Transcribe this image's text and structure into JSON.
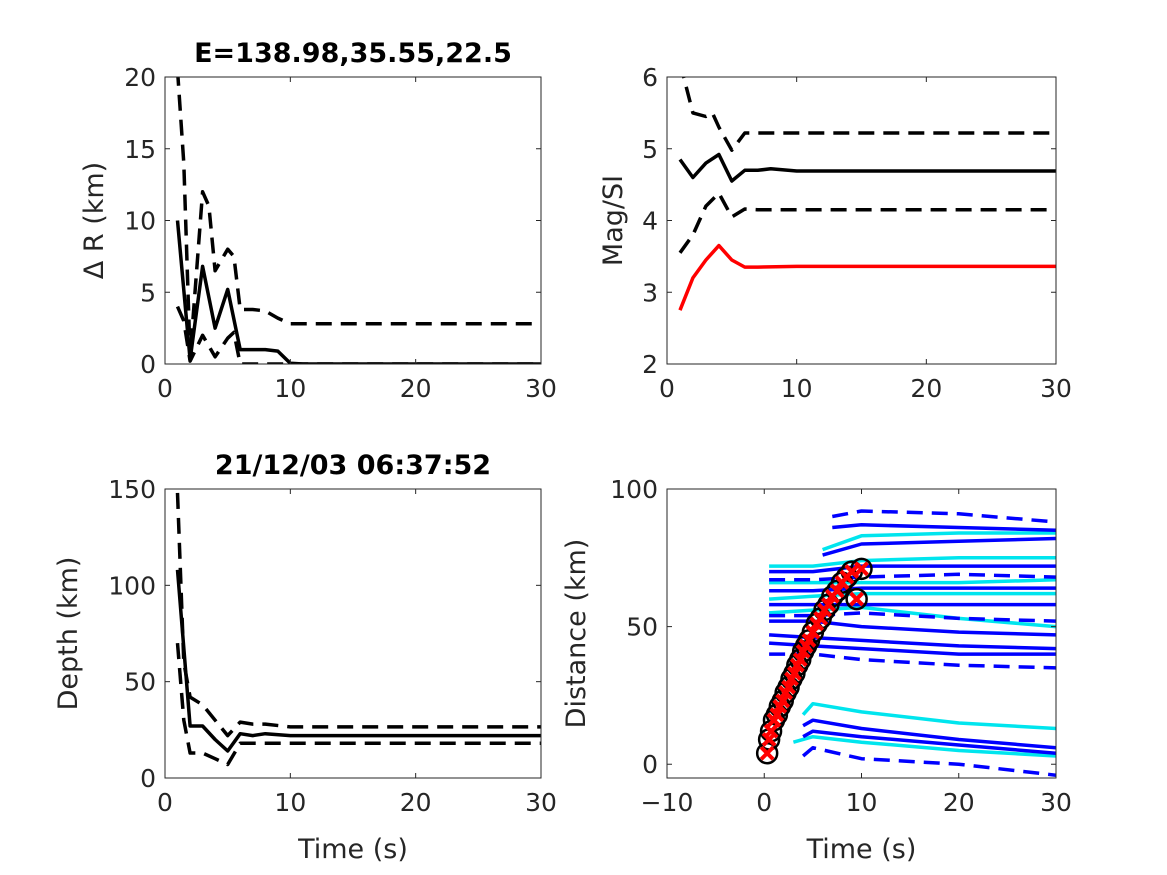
{
  "figure": {
    "background": "#ffffff"
  },
  "chart_data": [
    {
      "type": "line",
      "title": "E=138.98,35.55,22.5",
      "xlabel": "",
      "ylabel": "Δ R (km)",
      "xlim": [
        0,
        30
      ],
      "ylim": [
        0,
        20
      ],
      "xticks": [
        0,
        10,
        20,
        30
      ],
      "yticks": [
        0,
        5,
        10,
        15,
        20
      ],
      "grid": false,
      "series": [
        {
          "style": "solid",
          "color": "#000000",
          "x": [
            1,
            2,
            3,
            4,
            5,
            6,
            7,
            8,
            9,
            10,
            11,
            30
          ],
          "y": [
            10,
            0.3,
            6.8,
            2.5,
            5.2,
            1.0,
            1.0,
            1.0,
            0.9,
            0.05,
            0,
            0
          ]
        },
        {
          "style": "dashed",
          "color": "#000000",
          "x": [
            1,
            1.5,
            2,
            3,
            3.5,
            4,
            5,
            5.5,
            6,
            7,
            8,
            9,
            10,
            11,
            30
          ],
          "y": [
            20.5,
            14,
            0.5,
            12,
            11,
            6.5,
            8,
            7.5,
            3.8,
            3.8,
            3.7,
            3.2,
            2.8,
            2.8,
            2.8
          ]
        },
        {
          "style": "dashed",
          "color": "#000000",
          "x": [
            1,
            1.5,
            2,
            3,
            4,
            5,
            5.5,
            6,
            30
          ],
          "y": [
            4,
            3,
            0.2,
            2,
            0.5,
            1.8,
            2.2,
            0,
            0
          ]
        }
      ]
    },
    {
      "type": "line",
      "title": "",
      "xlabel": "",
      "ylabel": "Mag/SI",
      "xlim": [
        0,
        30
      ],
      "ylim": [
        2,
        6
      ],
      "xticks": [
        0,
        10,
        20,
        30
      ],
      "yticks": [
        2,
        3,
        4,
        5,
        6
      ],
      "grid": false,
      "series": [
        {
          "style": "solid",
          "color": "#000000",
          "x": [
            1,
            2,
            3,
            4,
            5,
            6,
            7,
            8,
            10,
            30
          ],
          "y": [
            4.85,
            4.6,
            4.8,
            4.92,
            4.55,
            4.7,
            4.7,
            4.72,
            4.69,
            4.69
          ]
        },
        {
          "style": "dashed",
          "color": "#000000",
          "x": [
            1,
            2,
            3,
            3.5,
            4,
            5,
            6,
            7,
            10,
            30
          ],
          "y": [
            6.2,
            5.5,
            5.45,
            5.5,
            5.3,
            4.98,
            5.22,
            5.22,
            5.22,
            5.22
          ]
        },
        {
          "style": "dashed",
          "color": "#000000",
          "x": [
            1,
            2,
            3,
            4,
            5,
            6,
            7,
            10,
            30
          ],
          "y": [
            3.55,
            3.8,
            4.2,
            4.38,
            4.05,
            4.16,
            4.15,
            4.15,
            4.15
          ]
        },
        {
          "style": "solid",
          "color": "#ff0000",
          "x": [
            1,
            2,
            3,
            4,
            5,
            6,
            7,
            10,
            30
          ],
          "y": [
            2.75,
            3.2,
            3.45,
            3.65,
            3.45,
            3.35,
            3.35,
            3.36,
            3.36
          ]
        }
      ]
    },
    {
      "type": "line",
      "title": "21/12/03 06:37:52",
      "xlabel": "Time (s)",
      "ylabel": "Depth (km)",
      "xlim": [
        0,
        30
      ],
      "ylim": [
        0,
        150
      ],
      "xticks": [
        0,
        10,
        20,
        30
      ],
      "yticks": [
        0,
        50,
        100,
        150
      ],
      "grid": false,
      "series": [
        {
          "style": "solid",
          "color": "#000000",
          "x": [
            1,
            2,
            3,
            4,
            5,
            6,
            7,
            8,
            10,
            30
          ],
          "y": [
            108,
            27,
            27,
            20,
            14,
            23,
            22,
            23,
            22,
            22
          ]
        },
        {
          "style": "dashed",
          "color": "#000000",
          "x": [
            1,
            1.5,
            2,
            3,
            4,
            5,
            6,
            7,
            8,
            10,
            30
          ],
          "y": [
            148,
            60,
            42,
            38,
            30,
            22,
            29,
            28,
            28,
            26.5,
            26.5
          ]
        },
        {
          "style": "dashed",
          "color": "#000000",
          "x": [
            1,
            1.5,
            2,
            3,
            4,
            5,
            6,
            7,
            8,
            10,
            30
          ],
          "y": [
            70,
            30,
            13,
            13,
            10,
            7,
            18,
            18,
            18,
            18,
            18
          ]
        }
      ]
    },
    {
      "type": "scatter",
      "title": "",
      "xlabel": "Time (s)",
      "ylabel": "Distance (km)",
      "xlim": [
        -10,
        30
      ],
      "ylim": [
        -5,
        100
      ],
      "xticks": [
        -10,
        0,
        10,
        20,
        30
      ],
      "yticks": [
        0,
        50,
        100
      ],
      "grid": false,
      "series": [
        {
          "style": "solid",
          "color": "#00e5ee",
          "x": [
            0.5,
            5,
            10,
            20,
            30
          ],
          "y": [
            72,
            72,
            74,
            75,
            75
          ]
        },
        {
          "style": "solid",
          "color": "#00e5ee",
          "x": [
            0.5,
            5,
            10,
            20,
            30
          ],
          "y": [
            66,
            66,
            66,
            66,
            67
          ]
        },
        {
          "style": "solid",
          "color": "#00e5ee",
          "x": [
            0.5,
            5,
            10,
            20,
            30
          ],
          "y": [
            60,
            61,
            62,
            62,
            62
          ]
        },
        {
          "style": "solid",
          "color": "#00e5ee",
          "x": [
            0.5,
            5,
            10,
            20,
            30
          ],
          "y": [
            55,
            56,
            57,
            53,
            50
          ]
        },
        {
          "style": "solid",
          "color": "#00e5ee",
          "x": [
            6,
            10,
            20,
            30
          ],
          "y": [
            78,
            83,
            84,
            84
          ]
        },
        {
          "style": "solid",
          "color": "#00e5ee",
          "x": [
            4,
            5,
            10,
            20,
            30
          ],
          "y": [
            18,
            22,
            19,
            15,
            13
          ]
        },
        {
          "style": "solid",
          "color": "#00e5ee",
          "x": [
            3,
            5,
            10,
            20,
            30
          ],
          "y": [
            8,
            10,
            8,
            5,
            3
          ]
        },
        {
          "style": "solid",
          "color": "#0000ff",
          "x": [
            0.5,
            5,
            10,
            20,
            30
          ],
          "y": [
            70,
            70,
            72,
            72,
            72
          ]
        },
        {
          "style": "solid",
          "color": "#0000ff",
          "x": [
            0.5,
            5,
            10,
            20,
            30
          ],
          "y": [
            63,
            63,
            64,
            64,
            64
          ]
        },
        {
          "style": "solid",
          "color": "#0000ff",
          "x": [
            0.5,
            5,
            10,
            20,
            30
          ],
          "y": [
            58,
            58,
            58,
            58,
            58
          ]
        },
        {
          "style": "solid",
          "color": "#0000ff",
          "x": [
            0.5,
            5,
            10,
            20,
            30
          ],
          "y": [
            52,
            52,
            50,
            48,
            47
          ]
        },
        {
          "style": "solid",
          "color": "#0000ff",
          "x": [
            0.5,
            5,
            10,
            20,
            30
          ],
          "y": [
            47,
            46,
            45,
            43,
            42
          ]
        },
        {
          "style": "solid",
          "color": "#0000ff",
          "x": [
            0.5,
            5,
            10,
            20,
            30
          ],
          "y": [
            44,
            43,
            42,
            40,
            40
          ]
        },
        {
          "style": "solid",
          "color": "#0000ff",
          "x": [
            6,
            10,
            20,
            30
          ],
          "y": [
            76,
            80,
            81,
            82
          ]
        },
        {
          "style": "solid",
          "color": "#0000ff",
          "x": [
            7,
            10,
            20,
            30
          ],
          "y": [
            86,
            87,
            86,
            85
          ]
        },
        {
          "style": "solid",
          "color": "#0000ff",
          "x": [
            4,
            5,
            10,
            20,
            30
          ],
          "y": [
            14,
            16,
            13,
            9,
            6
          ]
        },
        {
          "style": "solid",
          "color": "#0000ff",
          "x": [
            4,
            5,
            10,
            20,
            30
          ],
          "y": [
            10,
            12,
            10,
            7,
            4
          ]
        },
        {
          "style": "dashed",
          "color": "#0000ff",
          "x": [
            7,
            10,
            20,
            30
          ],
          "y": [
            90,
            92,
            91,
            88
          ]
        },
        {
          "style": "dashed",
          "color": "#0000ff",
          "x": [
            0.5,
            5,
            10,
            20,
            30
          ],
          "y": [
            67,
            67,
            68,
            69,
            68
          ]
        },
        {
          "style": "dashed",
          "color": "#0000ff",
          "x": [
            0.5,
            5,
            10,
            20,
            30
          ],
          "y": [
            54,
            54,
            55,
            53,
            52
          ]
        },
        {
          "style": "dashed",
          "color": "#0000ff",
          "x": [
            0.5,
            5,
            10,
            20,
            30
          ],
          "y": [
            40,
            40,
            38,
            36,
            35
          ]
        },
        {
          "style": "dashed",
          "color": "#0000ff",
          "x": [
            4,
            5,
            10,
            20,
            30
          ],
          "y": [
            3,
            6,
            2,
            0,
            -4
          ]
        }
      ],
      "markers": {
        "circle_color": "#000000",
        "cross_color": "#ff0000",
        "x": [
          0.3,
          0.5,
          0.7,
          1.0,
          1.3,
          1.6,
          1.9,
          2.2,
          2.5,
          2.8,
          3.1,
          3.4,
          3.7,
          4.0,
          4.3,
          4.6,
          5.0,
          5.4,
          5.8,
          6.2,
          6.6,
          7.0,
          7.5,
          8.0,
          8.5,
          9.0,
          9.5,
          10.0
        ],
        "y": [
          4,
          9,
          12,
          16,
          18,
          21,
          23,
          26,
          28,
          31,
          33,
          36,
          38,
          41,
          43,
          45,
          48,
          51,
          53,
          56,
          58,
          61,
          63,
          66,
          68,
          70,
          60,
          71
        ]
      }
    }
  ]
}
